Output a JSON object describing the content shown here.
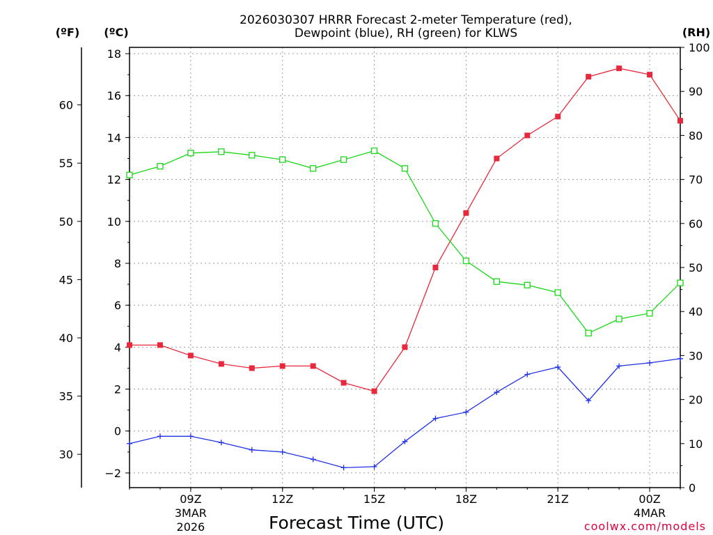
{
  "chart_data": {
    "type": "line",
    "title_line1": "2026030307 HRRR Forecast 2-meter Temperature (red),",
    "title_line2": "Dewpoint (blue), RH (green) for KLWS",
    "xlabel": "Forecast Time (UTC)",
    "credit": "coolwx.com/models",
    "unit_f": "(ºF)",
    "unit_c": "(ºC)",
    "unit_rh": "(RH)",
    "x_hours": [
      7,
      8,
      9,
      10,
      11,
      12,
      13,
      14,
      15,
      16,
      17,
      18,
      19,
      20,
      21,
      22,
      23,
      0,
      1
    ],
    "x_ticks": [
      {
        "label": "09Z",
        "sub1": "3MAR",
        "sub2": "2026"
      },
      {
        "label": "12Z",
        "sub1": "",
        "sub2": ""
      },
      {
        "label": "15Z",
        "sub1": "",
        "sub2": ""
      },
      {
        "label": "18Z",
        "sub1": "",
        "sub2": ""
      },
      {
        "label": "21Z",
        "sub1": "",
        "sub2": ""
      },
      {
        "label": "00Z",
        "sub1": "4MAR",
        "sub2": ""
      }
    ],
    "y_c_ticks": [
      "18",
      "16",
      "14",
      "12",
      "10",
      "8",
      "6",
      "4",
      "2",
      "0",
      "−2"
    ],
    "y_f_ticks": [
      "60",
      "55",
      "50",
      "45",
      "40",
      "35",
      "30"
    ],
    "y_rh_ticks": [
      "100",
      "90",
      "80",
      "70",
      "60",
      "50",
      "40",
      "30",
      "20",
      "10",
      "0"
    ],
    "ylim_c": [
      -2.7,
      18.3
    ],
    "ylim_rh": [
      0,
      100
    ],
    "series": [
      {
        "name": "Temperature",
        "units": "C",
        "color": "#e8283c",
        "marker": "filled-square",
        "values": [
          4.1,
          4.1,
          3.6,
          3.2,
          3.0,
          3.1,
          3.1,
          2.3,
          1.9,
          4.0,
          7.8,
          10.4,
          13.0,
          14.1,
          15.0,
          16.9,
          17.3,
          17.0,
          14.8
        ]
      },
      {
        "name": "Dewpoint",
        "units": "C",
        "color": "#2030e8",
        "marker": "plus",
        "values": [
          -0.6,
          -0.25,
          -0.25,
          -0.55,
          -0.9,
          -1.0,
          -1.35,
          -1.75,
          -1.7,
          -0.5,
          0.6,
          0.9,
          1.85,
          2.7,
          3.05,
          1.45,
          3.1,
          3.25,
          3.45
        ]
      },
      {
        "name": "RH",
        "units": "%",
        "color": "#18d818",
        "marker": "open-square",
        "values": [
          71,
          73,
          76,
          76.3,
          75.5,
          74.5,
          72.5,
          74.5,
          76.5,
          72.5,
          60,
          51.5,
          46.8,
          46,
          44.3,
          35.1,
          38.3,
          39.6,
          46.5
        ]
      }
    ]
  }
}
